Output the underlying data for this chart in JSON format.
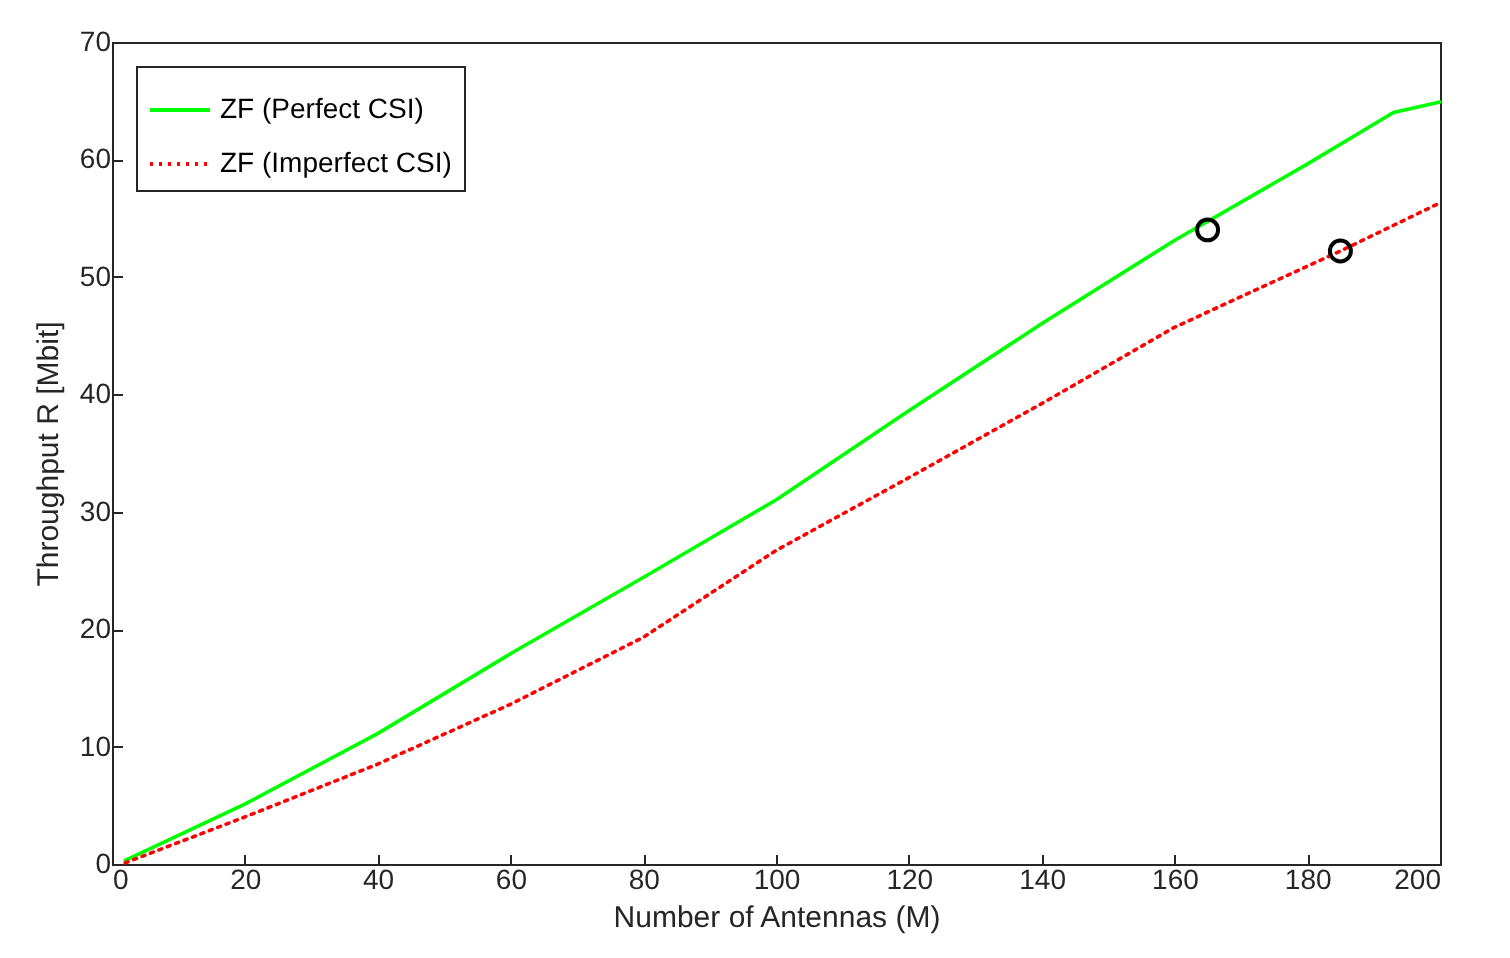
{
  "chart_data": {
    "type": "line",
    "xlabel": "Number of Antennas (M)",
    "ylabel": "Throughput R [Mbit]",
    "xlim": [
      0,
      200
    ],
    "ylim": [
      0,
      70
    ],
    "xticks": [
      0,
      20,
      40,
      60,
      80,
      100,
      120,
      140,
      160,
      180,
      200
    ],
    "yticks": [
      0,
      10,
      20,
      30,
      40,
      50,
      60,
      70
    ],
    "legend": "top left",
    "grid": false,
    "series": [
      {
        "name": "ZF (Perfect CSI)",
        "color": "#00ff00",
        "line_style": "solid",
        "marker": "none",
        "x": [
          2,
          20,
          40,
          60,
          80,
          100,
          120,
          140,
          160,
          180,
          193,
          200
        ],
        "values": [
          0.3,
          5.1,
          11.1,
          17.9,
          24.4,
          31.0,
          38.6,
          46.0,
          53.1,
          59.6,
          64.0,
          64.9
        ]
      },
      {
        "name": "ZF (Imperfect CSI)",
        "color": "#ff0000",
        "line_style": "dotted",
        "marker": "none",
        "x": [
          2,
          20,
          40,
          60,
          80,
          100,
          120,
          140,
          160,
          185,
          200
        ],
        "values": [
          0.1,
          4.0,
          8.5,
          13.6,
          19.3,
          26.7,
          32.9,
          39.2,
          45.7,
          52.2,
          56.3
        ]
      },
      {
        "type": "scatter",
        "color": "#000000",
        "marker": "circle",
        "x": [
          165,
          185
        ],
        "values": [
          54.0,
          52.2
        ]
      }
    ]
  }
}
